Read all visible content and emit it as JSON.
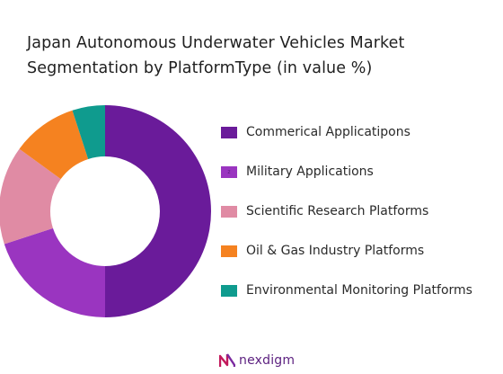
{
  "chart_data": {
    "type": "donut",
    "title_lines": [
      "Japan Autonomous Underwater Vehicles Market",
      "Segmentation by PlatformType (in value %)"
    ],
    "series": [
      {
        "name": "Commerical Applicatipons",
        "value": 50,
        "color": "#6a1b9a"
      },
      {
        "name": "Military Applications",
        "value": 20,
        "color": "#9a35c0"
      },
      {
        "name": "Scientific Research Platforms",
        "value": 15,
        "color": "#e08ba4"
      },
      {
        "name": "Oil & Gas Industry Platforms",
        "value": 10,
        "color": "#f58220"
      },
      {
        "name": "Environmental Monitoring Platforms",
        "value": 5,
        "color": "#0f9b8e"
      }
    ],
    "legend_position": "right"
  },
  "legend_marks": [
    "",
    "z",
    "",
    "",
    ""
  ],
  "footer": {
    "brand": "nexdigm",
    "brand_color": "#5b1f7f"
  }
}
